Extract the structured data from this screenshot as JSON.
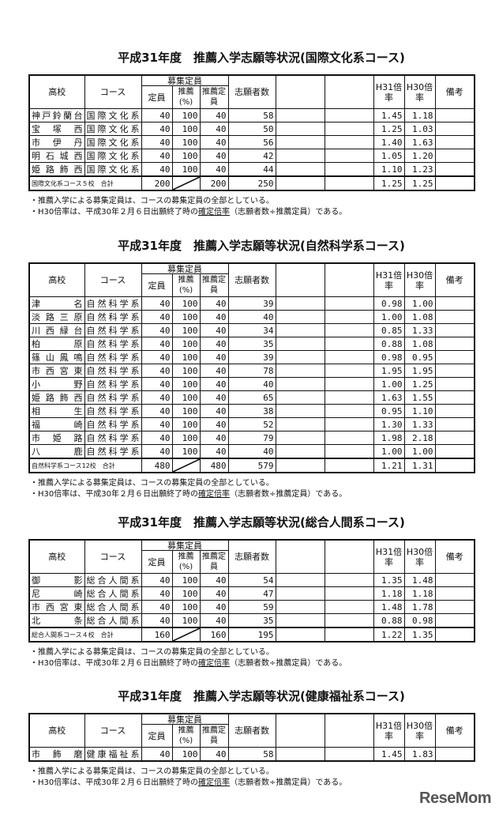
{
  "headers": {
    "school": "高校",
    "course": "コース",
    "capacity_group": "募集定員",
    "capacity": "定員",
    "rec_pct": "推薦(%)",
    "rec_cap": "推薦定員",
    "applicants": "志願者数",
    "h31": "H31倍率",
    "h30": "H30倍率",
    "remarks": "備考"
  },
  "notes": [
    "・推薦入学による募集定員は、コースの募集定員の全部としている。",
    "・H30倍率は、平成30年２月６日出願終了時の",
    "確定倍率",
    "（志願者数÷推薦定員）である。"
  ],
  "sections": [
    {
      "title": "平成31年度　推薦入学志願等状況(国際文化系コース)",
      "rows": [
        {
          "school": "神戸鈴蘭台",
          "course": "国際文化系",
          "cap": "40",
          "pct": "100",
          "rec": "40",
          "app": "58",
          "h31": "1.45",
          "h30": "1.18"
        },
        {
          "school": "宝塚西",
          "course": "国際文化系",
          "cap": "40",
          "pct": "100",
          "rec": "40",
          "app": "50",
          "h31": "1.25",
          "h30": "1.03"
        },
        {
          "school": "市伊丹",
          "course": "国際文化系",
          "cap": "40",
          "pct": "100",
          "rec": "40",
          "app": "56",
          "h31": "1.40",
          "h30": "1.63"
        },
        {
          "school": "明石城西",
          "course": "国際文化系",
          "cap": "40",
          "pct": "100",
          "rec": "40",
          "app": "42",
          "h31": "1.05",
          "h30": "1.20"
        },
        {
          "school": "姫路飾西",
          "course": "国際文化系",
          "cap": "40",
          "pct": "100",
          "rec": "40",
          "app": "44",
          "h31": "1.10",
          "h30": "1.23"
        }
      ],
      "total": {
        "label": "国際文化系コース５校　合計",
        "cap": "200",
        "rec": "200",
        "app": "250",
        "h31": "1.25",
        "h30": "1.25"
      }
    },
    {
      "title": "平成31年度　推薦入学志願等状況(自然科学系コース)",
      "rows": [
        {
          "school": "津名",
          "course": "自然科学系",
          "cap": "40",
          "pct": "100",
          "rec": "40",
          "app": "39",
          "h31": "0.98",
          "h30": "1.00"
        },
        {
          "school": "淡路三原",
          "course": "自然科学系",
          "cap": "40",
          "pct": "100",
          "rec": "40",
          "app": "40",
          "h31": "1.00",
          "h30": "1.08"
        },
        {
          "school": "川西緑台",
          "course": "自然科学系",
          "cap": "40",
          "pct": "100",
          "rec": "40",
          "app": "34",
          "h31": "0.85",
          "h30": "1.33"
        },
        {
          "school": "柏原",
          "course": "自然科学系",
          "cap": "40",
          "pct": "100",
          "rec": "40",
          "app": "35",
          "h31": "0.88",
          "h30": "1.08"
        },
        {
          "school": "篠山鳳鳴",
          "course": "自然科学系",
          "cap": "40",
          "pct": "100",
          "rec": "40",
          "app": "39",
          "h31": "0.98",
          "h30": "0.95"
        },
        {
          "school": "市西宮東",
          "course": "自然科学系",
          "cap": "40",
          "pct": "100",
          "rec": "40",
          "app": "78",
          "h31": "1.95",
          "h30": "1.95"
        },
        {
          "school": "小野",
          "course": "自然科学系",
          "cap": "40",
          "pct": "100",
          "rec": "40",
          "app": "40",
          "h31": "1.00",
          "h30": "1.25"
        },
        {
          "school": "姫路飾西",
          "course": "自然科学系",
          "cap": "40",
          "pct": "100",
          "rec": "40",
          "app": "65",
          "h31": "1.63",
          "h30": "1.55"
        },
        {
          "school": "相生",
          "course": "自然科学系",
          "cap": "40",
          "pct": "100",
          "rec": "40",
          "app": "38",
          "h31": "0.95",
          "h30": "1.10"
        },
        {
          "school": "福崎",
          "course": "自然科学系",
          "cap": "40",
          "pct": "100",
          "rec": "40",
          "app": "52",
          "h31": "1.30",
          "h30": "1.33"
        },
        {
          "school": "市姫路",
          "course": "自然科学系",
          "cap": "40",
          "pct": "100",
          "rec": "40",
          "app": "79",
          "h31": "1.98",
          "h30": "2.18"
        },
        {
          "school": "八鹿",
          "course": "自然科学系",
          "cap": "40",
          "pct": "100",
          "rec": "40",
          "app": "40",
          "h31": "1.00",
          "h30": "1.00"
        }
      ],
      "total": {
        "label": "自然科学系コース12校　合計",
        "cap": "480",
        "rec": "480",
        "app": "579",
        "h31": "1.21",
        "h30": "1.31"
      }
    },
    {
      "title": "平成31年度　推薦入学志願等状況(総合人間系コース)",
      "rows": [
        {
          "school": "御影",
          "course": "総合人間系",
          "cap": "40",
          "pct": "100",
          "rec": "40",
          "app": "54",
          "h31": "1.35",
          "h30": "1.48"
        },
        {
          "school": "尼崎",
          "course": "総合人間系",
          "cap": "40",
          "pct": "100",
          "rec": "40",
          "app": "47",
          "h31": "1.18",
          "h30": "1.18"
        },
        {
          "school": "市西宮東",
          "course": "総合人間系",
          "cap": "40",
          "pct": "100",
          "rec": "40",
          "app": "59",
          "h31": "1.48",
          "h30": "1.78"
        },
        {
          "school": "北条",
          "course": "総合人間系",
          "cap": "40",
          "pct": "100",
          "rec": "40",
          "app": "35",
          "h31": "0.88",
          "h30": "0.98"
        }
      ],
      "total": {
        "label": "総合人間系コース４校　合計",
        "cap": "160",
        "rec": "160",
        "app": "195",
        "h31": "1.22",
        "h30": "1.35"
      }
    },
    {
      "title": "平成31年度　推薦入学志願等状況(健康福祉系コース)",
      "rows": [
        {
          "school": "市飾磨",
          "course": "健康福祉系",
          "cap": "40",
          "pct": "100",
          "rec": "40",
          "app": "58",
          "h31": "1.45",
          "h30": "1.83"
        }
      ],
      "total": null
    }
  ],
  "logo": "ReseMom"
}
